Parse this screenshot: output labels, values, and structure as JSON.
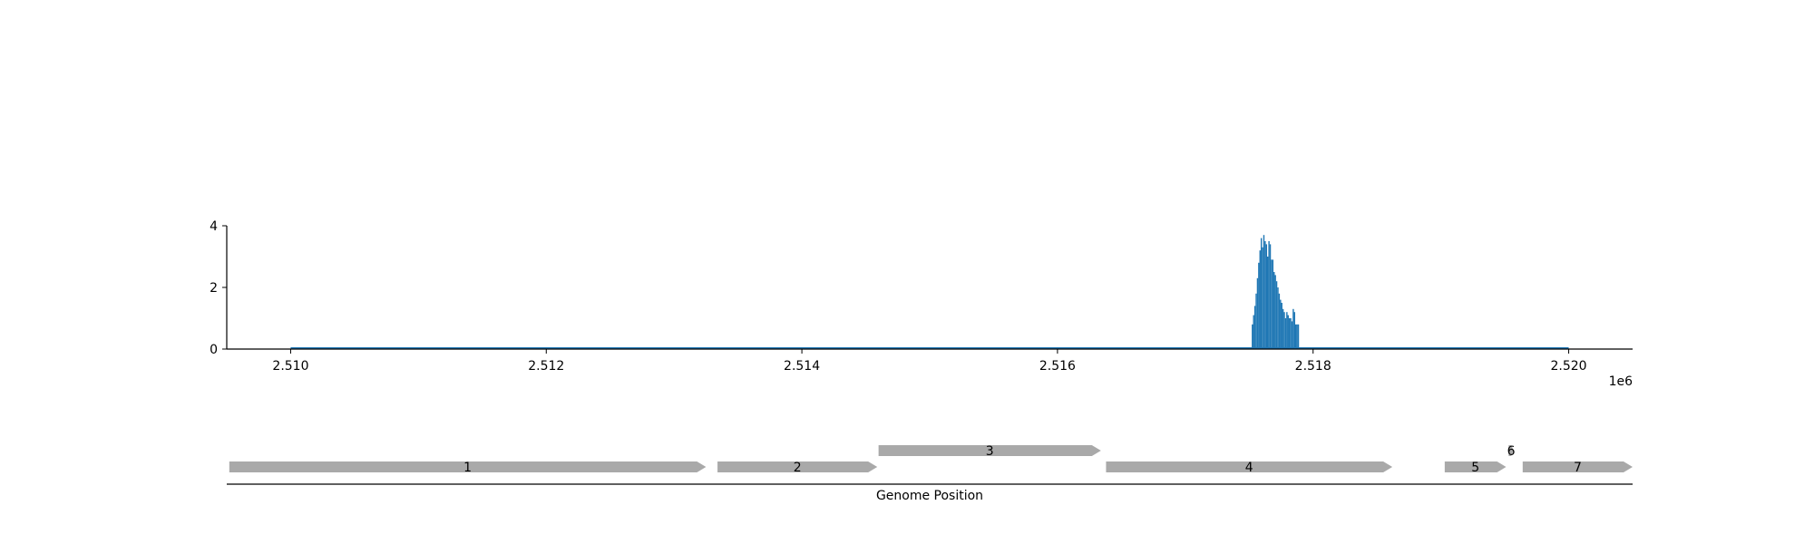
{
  "chart_data": [
    {
      "type": "bar",
      "panel": "coverage",
      "title": "",
      "xlabel": "",
      "ylabel": "",
      "x_offset_label": "1e6",
      "xlim": [
        2509500,
        2520500
      ],
      "ylim": [
        0,
        4
      ],
      "x_ticks": [
        2510000,
        2512000,
        2514000,
        2516000,
        2518000,
        2520000
      ],
      "x_tick_labels": [
        "2.510",
        "2.512",
        "2.514",
        "2.516",
        "2.518",
        "2.520"
      ],
      "y_ticks": [
        0,
        2,
        4
      ],
      "y_tick_labels": [
        "0",
        "2",
        "4"
      ],
      "baseline_range": [
        2510000,
        2520000
      ],
      "color": "#1f77b4",
      "bin_width": 10,
      "x": [
        2517520,
        2517530,
        2517540,
        2517550,
        2517560,
        2517570,
        2517580,
        2517590,
        2517600,
        2517610,
        2517620,
        2517630,
        2517640,
        2517650,
        2517660,
        2517670,
        2517680,
        2517690,
        2517700,
        2517710,
        2517720,
        2517730,
        2517740,
        2517750,
        2517760,
        2517770,
        2517780,
        2517790,
        2517800,
        2517810,
        2517820,
        2517830,
        2517840,
        2517850,
        2517860,
        2517870,
        2517880
      ],
      "values": [
        0.8,
        1.1,
        1.4,
        1.8,
        2.3,
        2.8,
        3.2,
        3.6,
        3.3,
        3.7,
        3.5,
        3.4,
        3.0,
        3.5,
        3.4,
        2.9,
        2.9,
        2.5,
        2.4,
        2.2,
        2.0,
        1.8,
        1.6,
        1.5,
        1.3,
        1.2,
        1.0,
        1.2,
        1.1,
        1.0,
        1.0,
        0.9,
        1.3,
        1.2,
        0.8,
        0.8,
        0.8
      ]
    },
    {
      "type": "gene_track",
      "panel": "genes",
      "xlabel": "Genome Position",
      "color": "#a9a9a9",
      "genes": [
        {
          "label": "1",
          "start": 2509520,
          "end": 2513250,
          "row": 0
        },
        {
          "label": "2",
          "start": 2513340,
          "end": 2514590,
          "row": 0
        },
        {
          "label": "3",
          "start": 2514600,
          "end": 2516340,
          "row": 1
        },
        {
          "label": "4",
          "start": 2516380,
          "end": 2518620,
          "row": 0
        },
        {
          "label": "5",
          "start": 2519030,
          "end": 2519510,
          "row": 0
        },
        {
          "label": "6",
          "start": 2519530,
          "end": 2519570,
          "row": 1
        },
        {
          "label": "7",
          "start": 2519640,
          "end": 2520500,
          "row": 0
        }
      ]
    }
  ]
}
